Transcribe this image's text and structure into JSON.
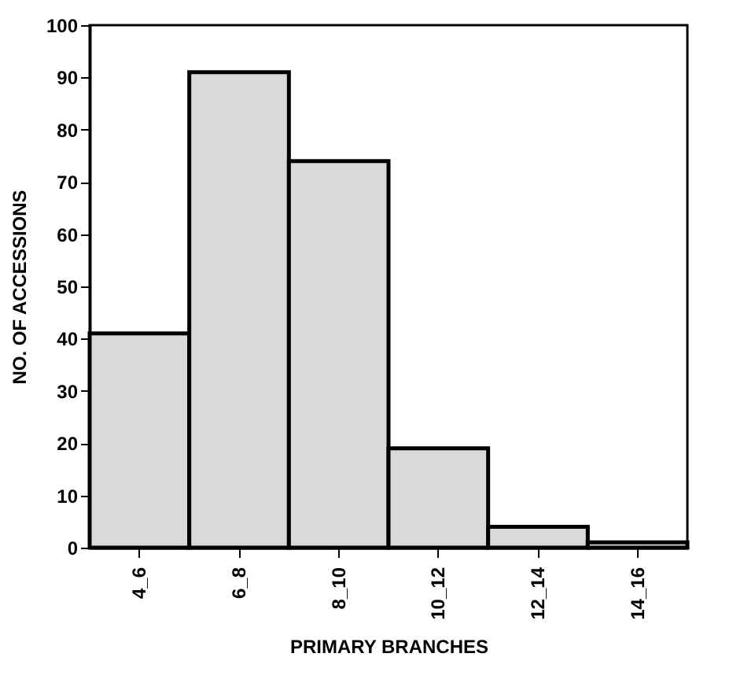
{
  "chart_data": {
    "type": "bar",
    "xlabel": "PRIMARY BRANCHES",
    "ylabel": "NO. OF ACCESSIONS",
    "categories": [
      "4_6",
      "6_8",
      "8_10",
      "10_12",
      "12_14",
      "14_16"
    ],
    "values": [
      41,
      91,
      74,
      19,
      4,
      1
    ],
    "color": "#d9d9d9",
    "ylim": [
      0,
      100
    ],
    "yticks": [
      0,
      10,
      20,
      30,
      40,
      50,
      60,
      70,
      80,
      90,
      100
    ],
    "grid": false
  }
}
